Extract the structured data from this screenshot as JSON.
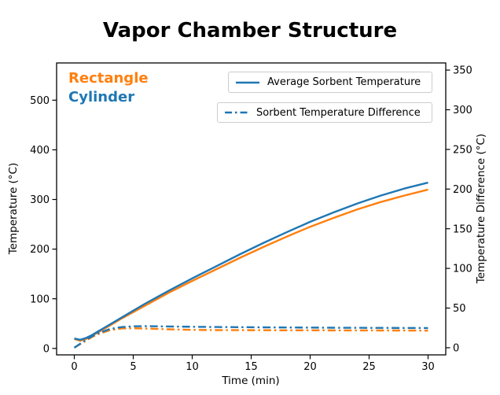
{
  "chart_data": {
    "type": "line",
    "title": "Vapor Chamber Structure",
    "x": [
      0,
      0.5,
      1,
      1.5,
      2,
      3,
      4,
      5,
      6,
      8,
      10,
      12,
      14,
      16,
      18,
      20,
      22,
      24,
      26,
      28,
      30
    ],
    "series": [
      {
        "name": "Rectangle - Average Sorbent Temperature",
        "axis": "left",
        "style": "solid",
        "color": "#ff7f0e",
        "values": [
          19,
          15.5,
          19,
          25,
          32,
          46,
          60,
          73,
          86,
          112,
          136,
          159,
          182,
          204,
          225,
          245,
          263,
          280,
          295,
          308,
          320
        ]
      },
      {
        "name": "Cylinder - Average Sorbent Temperature",
        "axis": "left",
        "style": "solid",
        "color": "#1f77b4",
        "values": [
          20,
          17.5,
          21,
          27,
          34,
          48,
          62,
          76,
          90,
          116,
          141,
          165,
          189,
          212,
          234,
          255,
          274,
          292,
          308,
          322,
          334
        ]
      },
      {
        "name": "Rectangle - Sorbent Temperature Difference",
        "axis": "right",
        "style": "dashdot",
        "color": "#ff7f0e",
        "values": [
          0,
          4.5,
          9,
          13.5,
          17,
          22,
          24.3,
          24.5,
          24.2,
          23.2,
          22.5,
          22.2,
          22.1,
          22,
          21.9,
          21.9,
          21.8,
          21.8,
          21.7,
          21.7,
          21.6
        ]
      },
      {
        "name": "Cylinder - Sorbent Temperature Difference",
        "axis": "right",
        "style": "dashdot",
        "color": "#1f77b4",
        "values": [
          0,
          5,
          10,
          14.5,
          18,
          23.5,
          26,
          27,
          27.2,
          26.8,
          26.4,
          26.1,
          25.9,
          25.7,
          25.5,
          25.4,
          25.2,
          25.1,
          25,
          24.9,
          24.8
        ]
      }
    ],
    "axes": {
      "x": {
        "label": "Time (min)",
        "ticks": [
          0,
          5,
          10,
          15,
          20,
          25,
          30
        ],
        "range": [
          -1.5,
          31.5
        ]
      },
      "y_left": {
        "label": "Temperature (°C)",
        "ticks": [
          0,
          100,
          200,
          300,
          400,
          500
        ],
        "range": [
          -13,
          575
        ]
      },
      "y_right": {
        "label": "Temperature Difference (°C)",
        "ticks": [
          0,
          50,
          100,
          150,
          200,
          250,
          300,
          350
        ],
        "range": [
          -9,
          359
        ]
      }
    },
    "legend": [
      {
        "label": "Average Sorbent Temperature",
        "style": "solid",
        "color": "#1f77b4"
      },
      {
        "label": "Sorbent Temperature Difference",
        "style": "dashdot",
        "color": "#1f77b4"
      }
    ],
    "annotations": [
      {
        "text": "Rectangle",
        "color": "#ff7f0e"
      },
      {
        "text": "Cylinder",
        "color": "#1f77b4"
      }
    ],
    "grid": false,
    "legend_position": "upper right, stacked boxes"
  }
}
